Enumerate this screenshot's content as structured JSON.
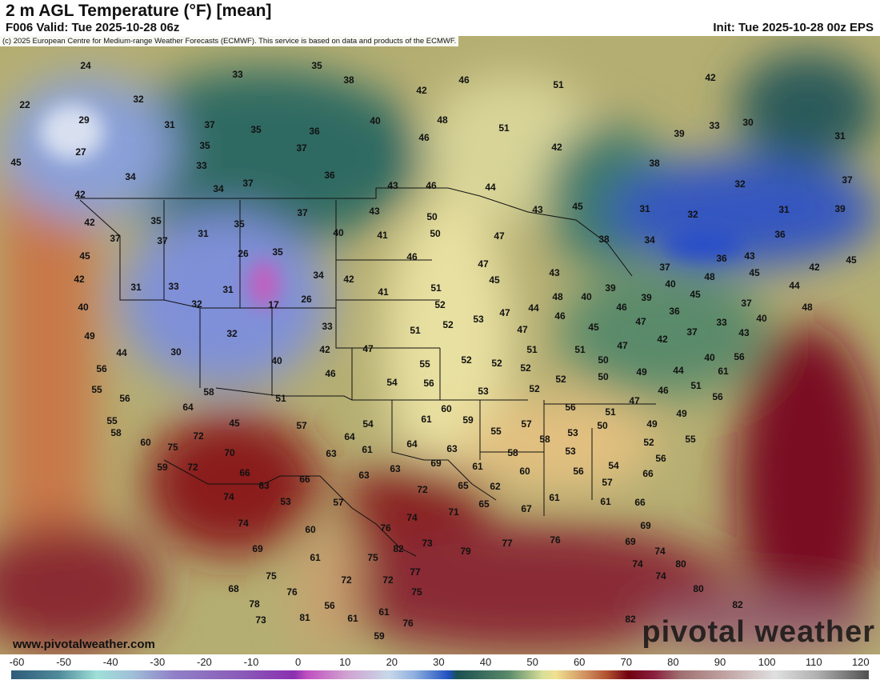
{
  "header": {
    "title": "2 m AGL Temperature (°F) [mean]",
    "valid": "F006 Valid: Tue 2025-10-28 06z",
    "init": "Init: Tue 2025-10-28 00z EPS"
  },
  "map": {
    "copyright": "(c) 2025 European Centre for Medium-range Weather Forecasts (ECMWF). This service is based on data and products of the ECMWF.",
    "website": "www.pivotalweather.com",
    "watermark": "pivotal weather",
    "temperature_labels": [
      "24",
      "22",
      "29",
      "27",
      "45",
      "34",
      "32",
      "33",
      "35",
      "38",
      "46",
      "42",
      "51",
      "42",
      "31",
      "37",
      "35",
      "36",
      "37",
      "35",
      "40",
      "48",
      "51",
      "39",
      "33",
      "30",
      "31",
      "46",
      "42",
      "38",
      "33",
      "36",
      "37",
      "34",
      "43",
      "46",
      "44",
      "42",
      "37",
      "32",
      "42",
      "35",
      "31",
      "35",
      "37",
      "43",
      "50",
      "43",
      "45",
      "31",
      "32",
      "31",
      "39",
      "37",
      "37",
      "40",
      "41",
      "50",
      "47",
      "38",
      "34",
      "36",
      "45",
      "26",
      "35",
      "46",
      "47",
      "43",
      "37",
      "36",
      "43",
      "42",
      "45",
      "31",
      "33",
      "31",
      "34",
      "42",
      "41",
      "51",
      "45",
      "40",
      "39",
      "48",
      "40",
      "48",
      "45",
      "44",
      "42",
      "40",
      "32",
      "17",
      "26",
      "52",
      "47",
      "44",
      "39",
      "46",
      "45",
      "37",
      "48",
      "36",
      "49",
      "32",
      "33",
      "51",
      "52",
      "53",
      "46",
      "47",
      "45",
      "47",
      "33",
      "40",
      "44",
      "30",
      "42",
      "47",
      "51",
      "51",
      "47",
      "42",
      "37",
      "43",
      "56",
      "40",
      "46",
      "55",
      "52",
      "52",
      "52",
      "50",
      "49",
      "40",
      "44",
      "61",
      "56",
      "55",
      "54",
      "56",
      "53",
      "52",
      "52",
      "50",
      "51",
      "46",
      "56",
      "58",
      "56",
      "51",
      "47",
      "56",
      "51",
      "64",
      "60",
      "61",
      "59",
      "55",
      "45",
      "57",
      "54",
      "49",
      "49",
      "57",
      "72",
      "58",
      "53",
      "55",
      "64",
      "64",
      "63",
      "58",
      "50",
      "52",
      "55",
      "60",
      "75",
      "70",
      "63",
      "61",
      "69",
      "61",
      "58",
      "53",
      "54",
      "56",
      "59",
      "72",
      "66",
      "63",
      "63",
      "60",
      "56",
      "66",
      "63",
      "72",
      "65",
      "62",
      "57",
      "66",
      "74",
      "53",
      "57",
      "71",
      "65",
      "67",
      "61",
      "61",
      "66",
      "74",
      "60",
      "74",
      "76",
      "77",
      "76",
      "69",
      "69",
      "74",
      "79",
      "73",
      "82",
      "69",
      "61",
      "75",
      "74",
      "80",
      "75",
      "72",
      "72",
      "77",
      "74",
      "68",
      "76",
      "75",
      "80",
      "78",
      "56",
      "82",
      "61",
      "61",
      "76",
      "73",
      "81",
      "82",
      "59"
    ]
  },
  "colorbar": {
    "units": "°F",
    "ticks": [
      "-60",
      "-50",
      "-40",
      "-30",
      "-20",
      "-10",
      "0",
      "10",
      "20",
      "30",
      "40",
      "50",
      "60",
      "70",
      "80",
      "90",
      "100",
      "110",
      "120"
    ]
  }
}
